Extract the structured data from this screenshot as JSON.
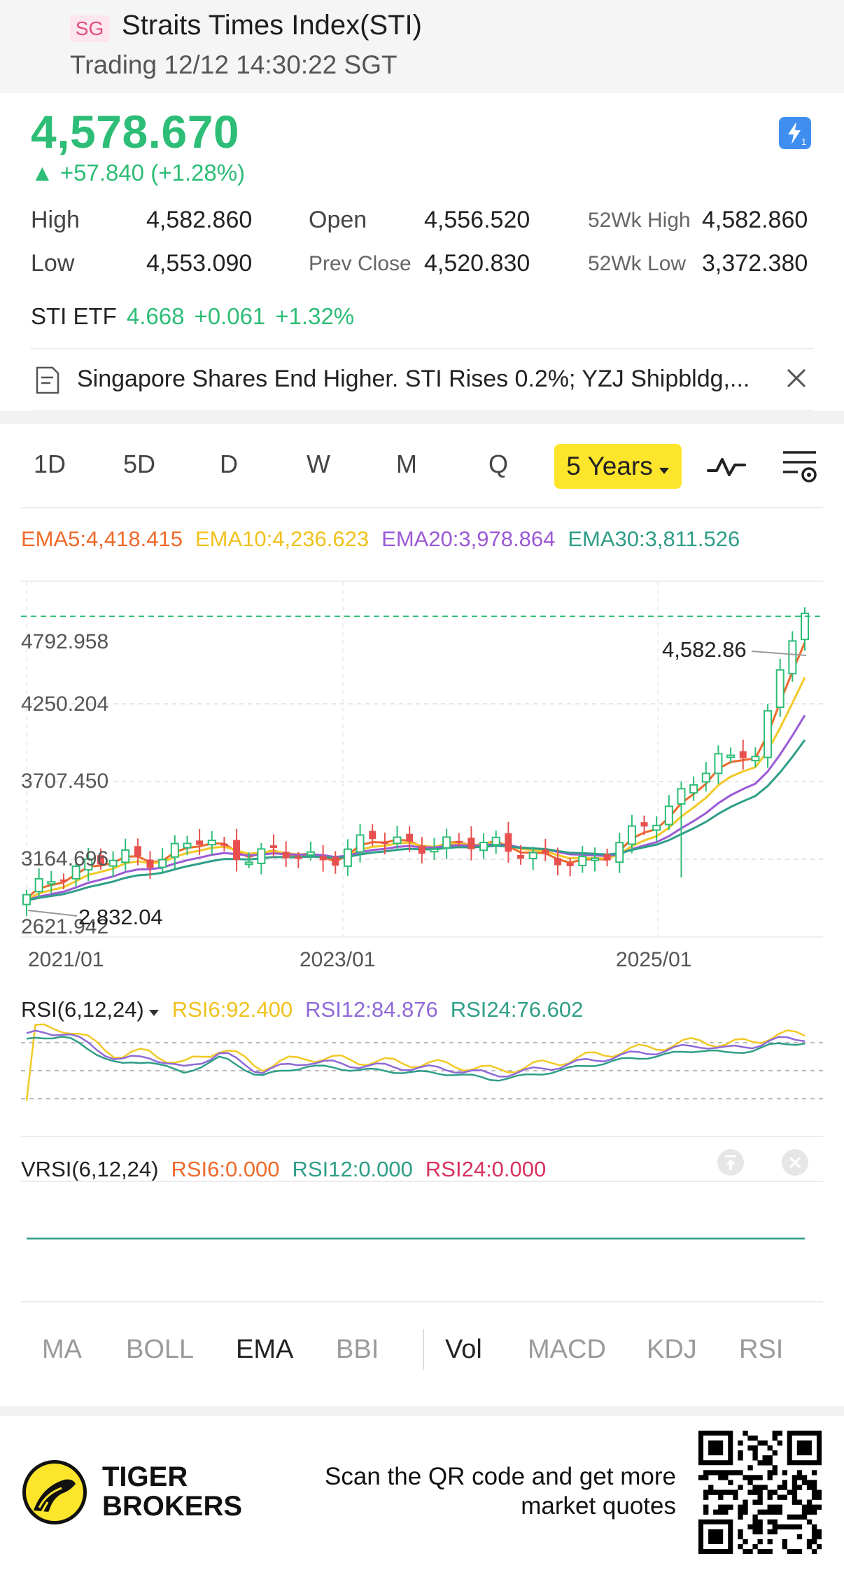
{
  "header": {
    "badge": "SG",
    "title": "Straits Times Index(STI)",
    "status": "Trading 12/12 14:30:22 SGT"
  },
  "quote": {
    "price": "4,578.670",
    "change": "▲ +57.840 (+1.28%)",
    "high_label": "High",
    "high": "4,582.860",
    "low_label": "Low",
    "low": "4,553.090",
    "open_label": "Open",
    "open": "4,556.520",
    "prev_close_label": "Prev Close",
    "prev_close": "4,520.830",
    "wk52_high_label": "52Wk High",
    "wk52_high": "4,582.860",
    "wk52_low_label": "52Wk Low",
    "wk52_low": "3,372.380"
  },
  "etf": {
    "name": "STI ETF",
    "price": "4.668",
    "change": "+0.061",
    "change_pct": "+1.32%"
  },
  "news": {
    "headline": "Singapore Shares End Higher. STI Rises 0.2%; YZJ Shipbldg,..."
  },
  "period_tabs": {
    "items": [
      "1D",
      "5D",
      "D",
      "W",
      "M",
      "Q"
    ],
    "active": "5 Years"
  },
  "ema": {
    "ema5": "EMA5:4,418.415",
    "ema10": "EMA10:4,236.623",
    "ema20": "EMA20:3,978.864",
    "ema30": "EMA30:3,811.526"
  },
  "chart_data": {
    "type": "candlestick",
    "y_tick_labels": [
      "4792.958",
      "4250.204",
      "3707.450",
      "3164.696",
      "2621.942"
    ],
    "ylim": [
      2621.942,
      4792.958
    ],
    "x_tick_labels": [
      "2021/01",
      "2023/01",
      "2025/01"
    ],
    "high_marker": "4,582.86",
    "low_marker": "2,832.04",
    "current_line": 4578.67,
    "series": [
      {
        "name": "EMA5",
        "color": "#ee6a2c"
      },
      {
        "name": "EMA10",
        "color": "#f2c926"
      },
      {
        "name": "EMA20",
        "color": "#9b5ad6"
      },
      {
        "name": "EMA30",
        "color": "#2f9e88"
      }
    ]
  },
  "rsi": {
    "label": "RSI(6,12,24)",
    "rsi6": "RSI6:92.400",
    "rsi12": "RSI12:84.876",
    "rsi24": "RSI24:76.602"
  },
  "vrsi": {
    "label": "VRSI(6,12,24)",
    "rsi6": "RSI6:0.000",
    "rsi12": "RSI12:0.000",
    "rsi24": "RSI24:0.000"
  },
  "indicators": {
    "items": [
      "MA",
      "BOLL",
      "EMA",
      "BBI",
      "Vol",
      "MACD",
      "KDJ",
      "RSI"
    ],
    "active_main": "EMA",
    "active_sub": "Vol"
  },
  "footer": {
    "brand_line1": "TIGER",
    "brand_line2": "BROKERS",
    "cta_line1": "Scan the QR code and get more",
    "cta_line2": "market quotes"
  },
  "colors": {
    "up": "#2dbd76",
    "down": "#e8504f",
    "accent_tab": "#fde52b",
    "ema5": "#ee6a2c",
    "ema10": "#f2c926",
    "ema20": "#9b5ad6",
    "ema30": "#2f9e88",
    "vrsi_rsi6": "#ee6a2c",
    "vrsi_rsi12": "#2f9e88",
    "vrsi_rsi24": "#d8325f"
  }
}
